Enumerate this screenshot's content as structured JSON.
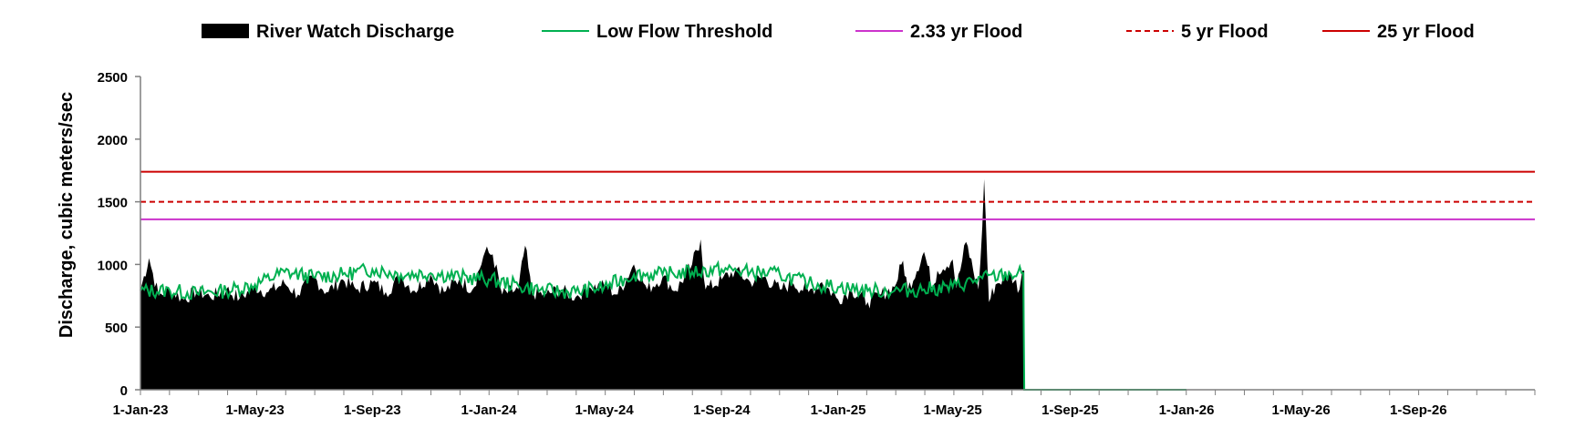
{
  "chart_data": {
    "type": "area",
    "title": "",
    "xlabel": "",
    "ylabel": "Discharge, cubic meters/sec",
    "ylim": [
      0,
      2500
    ],
    "xlim": [
      "2023-01-01",
      "2027-01-01"
    ],
    "yticks": [
      0,
      500,
      1000,
      1500,
      2000,
      2500
    ],
    "xtick_labels": [
      "1-Jan-23",
      "1-May-23",
      "1-Sep-23",
      "1-Jan-24",
      "1-May-24",
      "1-Sep-24",
      "1-Jan-25",
      "1-May-25",
      "1-Sep-25",
      "1-Jan-26",
      "1-May-26",
      "1-Sep-26"
    ],
    "xtick_dates": [
      "2023-01-01",
      "2023-05-01",
      "2023-09-01",
      "2024-01-01",
      "2024-05-01",
      "2024-09-01",
      "2025-01-01",
      "2025-05-01",
      "2025-09-01",
      "2026-01-01",
      "2026-05-01",
      "2026-09-01"
    ],
    "grid": false,
    "legend_position": "top",
    "series": [
      {
        "name": "River Watch Discharge",
        "kind": "area",
        "color": "#000000",
        "x": [
          "2023-01-01",
          "2023-01-10",
          "2023-01-20",
          "2023-02-01",
          "2023-02-15",
          "2023-03-01",
          "2023-03-15",
          "2023-04-01",
          "2023-04-15",
          "2023-05-01",
          "2023-05-15",
          "2023-06-01",
          "2023-06-15",
          "2023-07-01",
          "2023-07-15",
          "2023-08-01",
          "2023-08-15",
          "2023-09-01",
          "2023-09-15",
          "2023-10-01",
          "2023-10-15",
          "2023-11-01",
          "2023-11-15",
          "2023-12-01",
          "2023-12-15",
          "2023-12-28",
          "2024-01-05",
          "2024-01-15",
          "2024-02-01",
          "2024-02-08",
          "2024-02-15",
          "2024-03-01",
          "2024-03-15",
          "2024-04-01",
          "2024-04-15",
          "2024-05-01",
          "2024-05-15",
          "2024-06-01",
          "2024-06-15",
          "2024-07-01",
          "2024-07-15",
          "2024-08-01",
          "2024-08-10",
          "2024-08-15",
          "2024-09-01",
          "2024-09-15",
          "2024-10-01",
          "2024-10-15",
          "2024-11-01",
          "2024-11-15",
          "2024-12-01",
          "2024-12-15",
          "2025-01-01",
          "2025-01-15",
          "2025-02-01",
          "2025-02-15",
          "2025-03-01",
          "2025-03-10",
          "2025-03-15",
          "2025-04-01",
          "2025-04-10",
          "2025-04-15",
          "2025-05-01",
          "2025-05-05",
          "2025-05-15",
          "2025-05-28",
          "2025-06-01",
          "2025-06-03",
          "2025-06-08",
          "2025-06-15",
          "2025-07-01",
          "2025-07-10",
          "2025-07-12",
          "2025-07-13"
        ],
        "values": [
          800,
          1050,
          750,
          800,
          720,
          790,
          740,
          800,
          730,
          820,
          780,
          850,
          760,
          900,
          780,
          880,
          800,
          860,
          780,
          900,
          790,
          920,
          780,
          880,
          800,
          1100,
          1080,
          760,
          800,
          1150,
          770,
          760,
          800,
          740,
          820,
          830,
          760,
          1000,
          800,
          900,
          790,
          1000,
          1200,
          800,
          880,
          950,
          860,
          900,
          800,
          850,
          780,
          860,
          720,
          800,
          700,
          760,
          820,
          1030,
          800,
          1100,
          820,
          950,
          1040,
          810,
          1180,
          800,
          1300,
          1680,
          700,
          840,
          920,
          800,
          900,
          950
        ],
        "end_date": "2025-07-15"
      },
      {
        "name": "Low Flow Threshold",
        "kind": "line",
        "color": "#00b050",
        "x": [
          "2023-01-01",
          "2023-02-01",
          "2023-03-01",
          "2023-04-01",
          "2023-05-01",
          "2023-06-01",
          "2023-07-01",
          "2023-08-01",
          "2023-09-01",
          "2023-10-01",
          "2023-11-01",
          "2023-12-01",
          "2024-01-01",
          "2024-02-01",
          "2024-03-01",
          "2024-04-01",
          "2024-05-01",
          "2024-06-01",
          "2024-07-01",
          "2024-08-01",
          "2024-09-01",
          "2024-10-01",
          "2024-11-01",
          "2024-12-01",
          "2025-01-01",
          "2025-02-01",
          "2025-03-01",
          "2025-04-01",
          "2025-05-01",
          "2025-06-01",
          "2025-07-01",
          "2025-07-14",
          "2025-07-15",
          "2026-01-01"
        ],
        "values": [
          790,
          790,
          770,
          790,
          840,
          940,
          900,
          920,
          960,
          920,
          930,
          900,
          880,
          830,
          790,
          780,
          820,
          920,
          920,
          940,
          960,
          940,
          920,
          850,
          820,
          790,
          790,
          800,
          820,
          890,
          920,
          930,
          0,
          0
        ]
      },
      {
        "name": "2.33 yr Flood",
        "kind": "hline",
        "color": "#cc33cc",
        "value": 1360
      },
      {
        "name": "5 yr Flood",
        "kind": "hline",
        "color": "#cc0000",
        "dash": "dashed",
        "value": 1500
      },
      {
        "name": "25 yr Flood",
        "kind": "hline",
        "color": "#cc0000",
        "value": 1740
      }
    ]
  }
}
